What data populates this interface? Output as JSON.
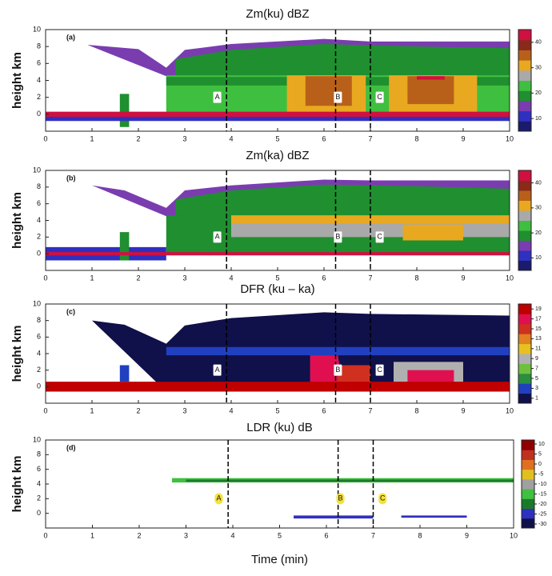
{
  "chart_data": [
    {
      "type": "heatmap",
      "title": "Zm(ku)    dBZ",
      "panel_label": "(a)",
      "ylabel": "height km",
      "xlim": [
        0,
        10
      ],
      "xticks": [
        0,
        1,
        2,
        3,
        4,
        5,
        6,
        7,
        8,
        9,
        10
      ],
      "ylim": [
        -2,
        10
      ],
      "yticks": [
        0,
        2,
        4,
        6,
        8,
        10
      ],
      "clim": [
        5,
        45
      ],
      "cticks": [
        10,
        20,
        30,
        40
      ],
      "colormap": [
        "#1a1a6e",
        "#3030c0",
        "#7a3db0",
        "#1f8f2f",
        "#3fbf3f",
        "#a9a9a9",
        "#e8a820",
        "#b8601a",
        "#8a2a1a",
        "#d01040"
      ],
      "vlines": [
        3.9,
        6.25,
        7.0
      ],
      "annotations": [
        {
          "text": "A",
          "x": 3.7,
          "y": 2
        },
        {
          "text": "B",
          "x": 6.3,
          "y": 2
        },
        {
          "text": "C",
          "x": 7.2,
          "y": 2
        }
      ]
    },
    {
      "type": "heatmap",
      "title": "Zm(ka)    dBZ",
      "panel_label": "(b)",
      "ylabel": "height km",
      "xlim": [
        0,
        10
      ],
      "xticks": [
        0,
        1,
        2,
        3,
        4,
        5,
        6,
        7,
        8,
        9,
        10
      ],
      "ylim": [
        -2,
        10
      ],
      "yticks": [
        0,
        2,
        4,
        6,
        8,
        10
      ],
      "clim": [
        5,
        45
      ],
      "cticks": [
        10,
        20,
        30,
        40
      ],
      "colormap": [
        "#1a1a6e",
        "#3030c0",
        "#7a3db0",
        "#1f8f2f",
        "#3fbf3f",
        "#a9a9a9",
        "#e8a820",
        "#b8601a",
        "#8a2a1a",
        "#d01040"
      ],
      "vlines": [
        3.9,
        6.25,
        7.0
      ],
      "annotations": [
        {
          "text": "A",
          "x": 3.7,
          "y": 2
        },
        {
          "text": "B",
          "x": 6.3,
          "y": 2
        },
        {
          "text": "C",
          "x": 7.2,
          "y": 2
        }
      ]
    },
    {
      "type": "heatmap",
      "title": "DFR (ku – ka)",
      "panel_label": "(c)",
      "ylabel": "height km",
      "xlim": [
        0,
        10
      ],
      "xticks": [
        0,
        1,
        2,
        3,
        4,
        5,
        6,
        7,
        8,
        9,
        10
      ],
      "ylim": [
        -2,
        10
      ],
      "yticks": [
        0,
        2,
        4,
        6,
        8,
        10
      ],
      "clim": [
        0,
        20
      ],
      "cticks": [
        1,
        3,
        5,
        7,
        9,
        11,
        13,
        15,
        17,
        19
      ],
      "colormap": [
        "#10104a",
        "#2040c0",
        "#2a9040",
        "#70c040",
        "#b0b0b0",
        "#e8c020",
        "#e08020",
        "#d03020",
        "#e01050",
        "#c00000"
      ],
      "vlines": [
        3.9,
        6.25,
        7.0
      ],
      "annotations": [
        {
          "text": "A",
          "x": 3.7,
          "y": 2
        },
        {
          "text": "B",
          "x": 6.3,
          "y": 2
        },
        {
          "text": "C",
          "x": 7.2,
          "y": 2
        }
      ]
    },
    {
      "type": "heatmap",
      "title": "LDR (ku)  dB",
      "panel_label": "(d)",
      "ylabel": "height km",
      "xlabel": "Time (min)",
      "xlim": [
        0,
        10
      ],
      "xticks": [
        0,
        1,
        2,
        3,
        4,
        5,
        6,
        7,
        8,
        9,
        10
      ],
      "ylim": [
        -2,
        10
      ],
      "yticks": [
        0,
        2,
        4,
        6,
        8,
        10
      ],
      "clim": [
        -32,
        12
      ],
      "cticks": [
        10,
        5,
        0,
        -5,
        -10,
        -15,
        -20,
        -25,
        -30
      ],
      "colormap": [
        "#10104a",
        "#3030c0",
        "#1a7a2a",
        "#40c040",
        "#a0a0a0",
        "#e0c020",
        "#e07020",
        "#c03020",
        "#900000"
      ],
      "vlines": [
        3.9,
        6.25,
        7.0
      ],
      "annotations": [
        {
          "text": "A",
          "x": 3.7,
          "y": 2
        },
        {
          "text": "B",
          "x": 6.3,
          "y": 2
        },
        {
          "text": "C",
          "x": 7.2,
          "y": 2
        }
      ]
    }
  ]
}
